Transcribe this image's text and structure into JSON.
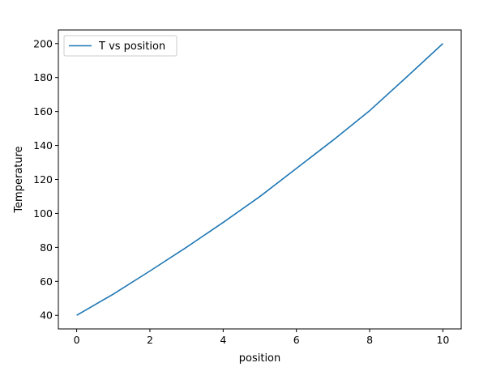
{
  "chart_data": {
    "type": "line",
    "title": "",
    "xlabel": "position",
    "ylabel": "Temperature",
    "xlim": [
      -0.5,
      10.5
    ],
    "ylim": [
      32,
      208
    ],
    "xticks": [
      0,
      2,
      4,
      6,
      8,
      10
    ],
    "yticks": [
      40,
      60,
      80,
      100,
      120,
      140,
      160,
      180,
      200
    ],
    "grid": false,
    "legend_position": "top-left",
    "series": [
      {
        "name": "T vs position",
        "color": "#1f77b4",
        "x": [
          0,
          1,
          2,
          3,
          4,
          5,
          6,
          7,
          8,
          9,
          10
        ],
        "y": [
          40,
          52.5,
          66.1,
          80.1,
          94.7,
          109.9,
          126.5,
          143.1,
          160.5,
          180.1,
          200
        ]
      }
    ]
  }
}
